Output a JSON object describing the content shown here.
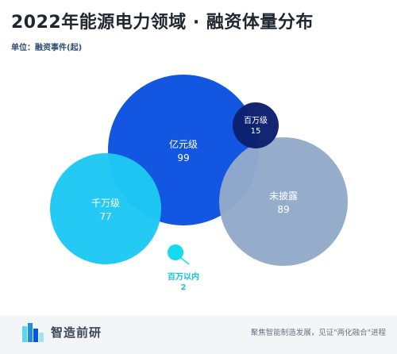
{
  "title": "2022年能源电力领域 · 融资体量分布",
  "unit_label": "单位：融资事件(起)",
  "chart_data": {
    "type": "bubble",
    "title": "2022年能源电力领域 · 融资体量分布",
    "unit": "融资事件(起)",
    "categories": [
      "亿元级",
      "百万级",
      "未披露",
      "千万级",
      "百万以内"
    ],
    "values": [
      99,
      15,
      89,
      77,
      2
    ],
    "colors": [
      "#0b51e0",
      "#0b1f6e",
      "#93a9c9",
      "#1ec8f4",
      "#14dbf0"
    ]
  },
  "footer": {
    "brand": "智造前研",
    "slogan": "聚焦智能制造发展，见证\"两化融合\"进程"
  }
}
